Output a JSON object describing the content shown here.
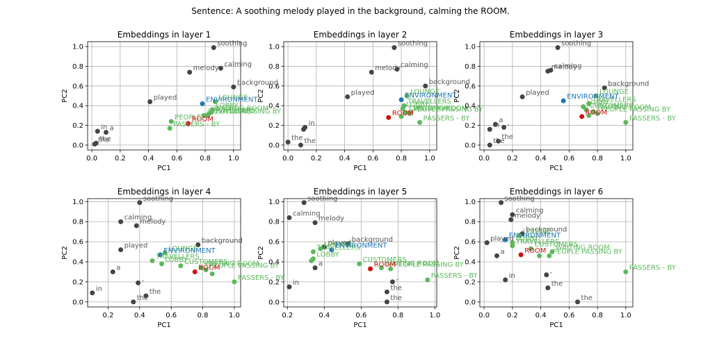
{
  "figure": {
    "suptitle": "Sentence: A soothing melody played in the background, calming the ROOM.",
    "colors": {
      "word": "#444444",
      "room": "#cc1111",
      "environment": "#1f77b4",
      "synonym": "#5cb85c"
    }
  },
  "chart_data": [
    {
      "type": "scatter",
      "title": "Embeddings in layer 1",
      "xlabel": "PC1",
      "ylabel": "PC2",
      "grid": true,
      "xlim": [
        -0.03,
        1.05
      ],
      "ylim": [
        -0.05,
        1.05
      ],
      "xticks": [
        "0.0",
        "0.2",
        "0.4",
        "0.6",
        "0.8",
        "1.0"
      ],
      "xtick_values": [
        0,
        0.2,
        0.4,
        0.6,
        0.8,
        1.0
      ],
      "yticks": [
        "0.0",
        "0.2",
        "0.4",
        "0.6",
        "0.8",
        "1.0"
      ],
      "ytick_values": [
        0,
        0.2,
        0.4,
        0.6,
        0.8,
        1.0
      ],
      "points": [
        {
          "label": "soothing",
          "x": 0.86,
          "y": 0.99,
          "group": "word"
        },
        {
          "label": "calming",
          "x": 0.91,
          "y": 0.78,
          "group": "word"
        },
        {
          "label": "melody",
          "x": 0.69,
          "y": 0.74,
          "group": "word"
        },
        {
          "label": "background",
          "x": 1.0,
          "y": 0.59,
          "group": "word"
        },
        {
          "label": "played",
          "x": 0.41,
          "y": 0.44,
          "group": "word"
        },
        {
          "label": "in",
          "x": 0.04,
          "y": 0.14,
          "group": "word"
        },
        {
          "label": "a",
          "x": 0.1,
          "y": 0.13,
          "group": "word"
        },
        {
          "label": "the",
          "x": 0.02,
          "y": 0.01,
          "group": "word"
        },
        {
          "label": "the",
          "x": 0.03,
          "y": 0.02,
          "group": "word"
        },
        {
          "label": "ENVIRONMENT",
          "x": 0.78,
          "y": 0.42,
          "group": "environment"
        },
        {
          "label": "ROOM",
          "x": 0.68,
          "y": 0.22,
          "group": "room"
        },
        {
          "label": "LOUNGE",
          "x": 0.87,
          "y": 0.44,
          "group": "synonym"
        },
        {
          "label": "LOBBY",
          "x": 0.85,
          "y": 0.36,
          "group": "synonym"
        },
        {
          "label": "PEOPLE",
          "x": 0.56,
          "y": 0.24,
          "group": "synonym"
        },
        {
          "label": "PASSERS - BY",
          "x": 0.55,
          "y": 0.17,
          "group": "synonym"
        },
        {
          "label": "TRAVELLERS",
          "x": 0.82,
          "y": 0.31,
          "group": "synonym"
        },
        {
          "label": "CUSTOMERS",
          "x": 0.79,
          "y": 0.3,
          "group": "synonym"
        },
        {
          "label": "WAITING ROOM",
          "x": 0.84,
          "y": 0.33,
          "group": "synonym"
        },
        {
          "label": "PEOPLE PASSING BY",
          "x": 0.82,
          "y": 0.3,
          "group": "synonym"
        }
      ]
    },
    {
      "type": "scatter",
      "title": "Embeddings in layer 2",
      "xlabel": "PC1",
      "ylabel": "PC2",
      "grid": true,
      "xlim": [
        -0.03,
        1.05
      ],
      "ylim": [
        -0.05,
        1.05
      ],
      "xticks": [
        "0.0",
        "0.2",
        "0.4",
        "0.6",
        "0.8",
        "1.0"
      ],
      "xtick_values": [
        0,
        0.2,
        0.4,
        0.6,
        0.8,
        1.0
      ],
      "yticks": [
        "0.0",
        "0.2",
        "0.4",
        "0.6",
        "0.8",
        "1.0"
      ],
      "ytick_values": [
        0,
        0.2,
        0.4,
        0.6,
        0.8,
        1.0
      ],
      "points": [
        {
          "label": "soothing",
          "x": 0.75,
          "y": 0.99,
          "group": "word"
        },
        {
          "label": "calming",
          "x": 0.77,
          "y": 0.77,
          "group": "word"
        },
        {
          "label": "melody",
          "x": 0.59,
          "y": 0.74,
          "group": "word"
        },
        {
          "label": "background",
          "x": 0.97,
          "y": 0.6,
          "group": "word"
        },
        {
          "label": "played",
          "x": 0.42,
          "y": 0.49,
          "group": "word"
        },
        {
          "label": "in",
          "x": 0.12,
          "y": 0.18,
          "group": "word"
        },
        {
          "label": "",
          "x": 0.11,
          "y": 0.16,
          "group": "word"
        },
        {
          "label": "the",
          "x": 0.0,
          "y": 0.03,
          "group": "word"
        },
        {
          "label": "the",
          "x": 0.09,
          "y": 0.0,
          "group": "word"
        },
        {
          "label": "ENVIRONMENT",
          "x": 0.8,
          "y": 0.46,
          "group": "environment"
        },
        {
          "label": "ROOM",
          "x": 0.71,
          "y": 0.28,
          "group": "room"
        },
        {
          "label": "LOUNGE",
          "x": 0.84,
          "y": 0.5,
          "group": "synonym"
        },
        {
          "label": "TRAVELLERS",
          "x": 0.82,
          "y": 0.4,
          "group": "synonym"
        },
        {
          "label": "LOBBY",
          "x": 0.81,
          "y": 0.37,
          "group": "synonym"
        },
        {
          "label": "CUSTOMERS",
          "x": 0.83,
          "y": 0.33,
          "group": "synonym"
        },
        {
          "label": "WAITING ROOM",
          "x": 0.86,
          "y": 0.33,
          "group": "synonym"
        },
        {
          "label": "PEOPLE PASSING BY",
          "x": 0.86,
          "y": 0.32,
          "group": "synonym"
        },
        {
          "label": "PASSERS - BY",
          "x": 0.93,
          "y": 0.23,
          "group": "synonym"
        },
        {
          "label": "",
          "x": 0.8,
          "y": 0.29,
          "group": "synonym"
        }
      ]
    },
    {
      "type": "scatter",
      "title": "Embeddings in layer 3",
      "xlabel": "PC1",
      "ylabel": "PC2",
      "grid": true,
      "xlim": [
        -0.03,
        1.05
      ],
      "ylim": [
        -0.05,
        1.05
      ],
      "xticks": [
        "0.0",
        "0.2",
        "0.4",
        "0.6",
        "0.8",
        "1.0"
      ],
      "xtick_values": [
        0,
        0.2,
        0.4,
        0.6,
        0.8,
        1.0
      ],
      "yticks": [
        "0.0",
        "0.2",
        "0.4",
        "0.6",
        "0.8",
        "1.0"
      ],
      "ytick_values": [
        0,
        0.2,
        0.4,
        0.6,
        0.8,
        1.0
      ],
      "points": [
        {
          "label": "soothing",
          "x": 0.52,
          "y": 0.99,
          "group": "word"
        },
        {
          "label": "melody",
          "x": 0.45,
          "y": 0.75,
          "group": "word"
        },
        {
          "label": "calming",
          "x": 0.47,
          "y": 0.76,
          "group": "word"
        },
        {
          "label": "background",
          "x": 0.85,
          "y": 0.58,
          "group": "word"
        },
        {
          "label": "played",
          "x": 0.27,
          "y": 0.49,
          "group": "word"
        },
        {
          "label": "a",
          "x": 0.08,
          "y": 0.21,
          "group": "word"
        },
        {
          "label": "in",
          "x": 0.04,
          "y": 0.16,
          "group": "word"
        },
        {
          "label": ",",
          "x": 0.14,
          "y": 0.18,
          "group": "word"
        },
        {
          "label": "the",
          "x": 0.1,
          "y": 0.04,
          "group": "word"
        },
        {
          "label": "the",
          "x": 0.04,
          "y": 0.0,
          "group": "word"
        },
        {
          "label": "ENVIRONMENT",
          "x": 0.56,
          "y": 0.45,
          "group": "environment"
        },
        {
          "label": "ROOM",
          "x": 0.69,
          "y": 0.29,
          "group": "room"
        },
        {
          "label": "LOUNGE",
          "x": 0.79,
          "y": 0.5,
          "group": "synonym"
        },
        {
          "label": "TRAVELLERS",
          "x": 0.74,
          "y": 0.42,
          "group": "synonym"
        },
        {
          "label": "LOBBY",
          "x": 0.7,
          "y": 0.39,
          "group": "synonym"
        },
        {
          "label": "CUSTOMERS",
          "x": 0.72,
          "y": 0.36,
          "group": "synonym"
        },
        {
          "label": "WAITING ROOM",
          "x": 0.77,
          "y": 0.34,
          "group": "synonym"
        },
        {
          "label": "PEOPLE PASSING BY",
          "x": 0.8,
          "y": 0.32,
          "group": "synonym"
        },
        {
          "label": "PASSERS - BY",
          "x": 1.0,
          "y": 0.23,
          "group": "synonym"
        },
        {
          "label": "",
          "x": 0.74,
          "y": 0.3,
          "group": "synonym"
        }
      ]
    },
    {
      "type": "scatter",
      "title": "Embeddings in layer 4",
      "xlabel": "PC1",
      "ylabel": "PC2",
      "grid": true,
      "xlim": [
        0.07,
        1.04
      ],
      "ylim": [
        -0.05,
        1.03
      ],
      "xticks": [
        "0.2",
        "0.4",
        "0.6",
        "0.8",
        "1.0"
      ],
      "xtick_values": [
        0.2,
        0.4,
        0.6,
        0.8,
        1.0
      ],
      "yticks": [
        "0.0",
        "0.2",
        "0.4",
        "0.6",
        "0.8",
        "1.0"
      ],
      "ytick_values": [
        0,
        0.2,
        0.4,
        0.6,
        0.8,
        1.0
      ],
      "points": [
        {
          "label": "soothing",
          "x": 0.4,
          "y": 0.99,
          "group": "word"
        },
        {
          "label": "calming",
          "x": 0.28,
          "y": 0.8,
          "group": "word"
        },
        {
          "label": "melody",
          "x": 0.38,
          "y": 0.76,
          "group": "word"
        },
        {
          "label": "background",
          "x": 0.77,
          "y": 0.57,
          "group": "word"
        },
        {
          "label": "played",
          "x": 0.28,
          "y": 0.52,
          "group": "word"
        },
        {
          "label": "a",
          "x": 0.23,
          "y": 0.3,
          "group": "word"
        },
        {
          "label": ",",
          "x": 0.39,
          "y": 0.19,
          "group": "word"
        },
        {
          "label": "in",
          "x": 0.1,
          "y": 0.09,
          "group": "word"
        },
        {
          "label": "the",
          "x": 0.44,
          "y": 0.06,
          "group": "word"
        },
        {
          "label": "the",
          "x": 0.36,
          "y": 0.0,
          "group": "word"
        },
        {
          "label": "ENVIRONMENT",
          "x": 0.53,
          "y": 0.47,
          "group": "environment"
        },
        {
          "label": "ROOM",
          "x": 0.75,
          "y": 0.3,
          "group": "room"
        },
        {
          "label": "LOUNGE",
          "x": 0.56,
          "y": 0.49,
          "group": "synonym"
        },
        {
          "label": "TRAVELLERS",
          "x": 0.48,
          "y": 0.41,
          "group": "synonym"
        },
        {
          "label": "LOBBY",
          "x": 0.54,
          "y": 0.38,
          "group": "synonym"
        },
        {
          "label": "CUSTOMERS",
          "x": 0.66,
          "y": 0.36,
          "group": "synonym"
        },
        {
          "label": "WAITING ROOM",
          "x": 0.79,
          "y": 0.34,
          "group": "synonym"
        },
        {
          "label": "PEOPLE PASSING BY",
          "x": 0.82,
          "y": 0.32,
          "group": "synonym"
        },
        {
          "label": "PASSERS - BY",
          "x": 1.0,
          "y": 0.2,
          "group": "synonym"
        },
        {
          "label": "",
          "x": 0.86,
          "y": 0.28,
          "group": "synonym"
        }
      ]
    },
    {
      "type": "scatter",
      "title": "Embeddings in layer 5",
      "xlabel": "PC1",
      "ylabel": "PC2",
      "grid": true,
      "xlim": [
        0.18,
        1.01
      ],
      "ylim": [
        -0.05,
        1.03
      ],
      "xticks": [
        "0.2",
        "0.4",
        "0.6",
        "0.8",
        "1.0"
      ],
      "xtick_values": [
        0.2,
        0.4,
        0.6,
        0.8,
        1.0
      ],
      "yticks": [
        "0.0",
        "0.2",
        "0.4",
        "0.6",
        "0.8",
        "1.0"
      ],
      "ytick_values": [
        0,
        0.2,
        0.4,
        0.6,
        0.8,
        1.0
      ],
      "points": [
        {
          "label": "soothing",
          "x": 0.29,
          "y": 0.99,
          "group": "word"
        },
        {
          "label": "calming",
          "x": 0.21,
          "y": 0.84,
          "group": "word"
        },
        {
          "label": "melody",
          "x": 0.35,
          "y": 0.79,
          "group": "word"
        },
        {
          "label": "background",
          "x": 0.53,
          "y": 0.58,
          "group": "word"
        },
        {
          "label": "played",
          "x": 0.4,
          "y": 0.55,
          "group": "word"
        },
        {
          "label": "a",
          "x": 0.35,
          "y": 0.34,
          "group": "word"
        },
        {
          "label": "in",
          "x": 0.21,
          "y": 0.15,
          "group": "word"
        },
        {
          "label": ",",
          "x": 0.77,
          "y": 0.2,
          "group": "word"
        },
        {
          "label": "the",
          "x": 0.74,
          "y": 0.1,
          "group": "word"
        },
        {
          "label": "the",
          "x": 0.74,
          "y": 0.0,
          "group": "word"
        },
        {
          "label": "ENVIRONMENT",
          "x": 0.44,
          "y": 0.52,
          "group": "environment"
        },
        {
          "label": "ROOM",
          "x": 0.65,
          "y": 0.33,
          "group": "room"
        },
        {
          "label": "LOUNGE",
          "x": 0.38,
          "y": 0.53,
          "group": "synonym"
        },
        {
          "label": "TRAVELLERS",
          "x": 0.34,
          "y": 0.5,
          "group": "synonym"
        },
        {
          "label": "LOBBY",
          "x": 0.34,
          "y": 0.43,
          "group": "synonym"
        },
        {
          "label": "",
          "x": 0.33,
          "y": 0.41,
          "group": "synonym"
        },
        {
          "label": "CUSTOMERS",
          "x": 0.59,
          "y": 0.38,
          "group": "synonym"
        },
        {
          "label": "WAITING ROOM",
          "x": 0.71,
          "y": 0.34,
          "group": "synonym"
        },
        {
          "label": "PEOPLE PASSING BY",
          "x": 0.76,
          "y": 0.33,
          "group": "synonym"
        },
        {
          "label": "PASSERS - BY",
          "x": 0.96,
          "y": 0.22,
          "group": "synonym"
        }
      ]
    },
    {
      "type": "scatter",
      "title": "Embeddings in layer 6",
      "xlabel": "PC1",
      "ylabel": "PC2",
      "grid": true,
      "xlim": [
        -0.03,
        1.05
      ],
      "ylim": [
        -0.05,
        1.03
      ],
      "xticks": [
        "0.0",
        "0.2",
        "0.4",
        "0.6",
        "0.8",
        "1.0"
      ],
      "xtick_values": [
        0,
        0.2,
        0.4,
        0.6,
        0.8,
        1.0
      ],
      "yticks": [
        "0.0",
        "0.2",
        "0.4",
        "0.6",
        "0.8",
        "1.0"
      ],
      "ytick_values": [
        0,
        0.2,
        0.4,
        0.6,
        0.8,
        1.0
      ],
      "points": [
        {
          "label": "soothing",
          "x": 0.12,
          "y": 0.99,
          "group": "word"
        },
        {
          "label": "calming",
          "x": 0.2,
          "y": 0.87,
          "group": "word"
        },
        {
          "label": "melody",
          "x": 0.19,
          "y": 0.82,
          "group": "word"
        },
        {
          "label": "background",
          "x": 0.27,
          "y": 0.68,
          "group": "word"
        },
        {
          "label": "played",
          "x": 0.02,
          "y": 0.59,
          "group": "word"
        },
        {
          "label": "a",
          "x": 0.09,
          "y": 0.46,
          "group": "word"
        },
        {
          "label": "in",
          "x": 0.15,
          "y": 0.22,
          "group": "word"
        },
        {
          "label": ",",
          "x": 0.44,
          "y": 0.27,
          "group": "word"
        },
        {
          "label": "the",
          "x": 0.45,
          "y": 0.14,
          "group": "word"
        },
        {
          "label": "the",
          "x": 0.66,
          "y": 0.0,
          "group": "word"
        },
        {
          "label": "ENVIRONMENT",
          "x": 0.15,
          "y": 0.62,
          "group": "environment"
        },
        {
          "label": "ROOM",
          "x": 0.26,
          "y": 0.47,
          "group": "room"
        },
        {
          "label": "LOUNGE",
          "x": 0.25,
          "y": 0.66,
          "group": "synonym"
        },
        {
          "label": "LOBBY",
          "x": 0.2,
          "y": 0.59,
          "group": "synonym"
        },
        {
          "label": "TRAVELLERS",
          "x": 0.2,
          "y": 0.56,
          "group": "synonym"
        },
        {
          "label": "CUSTOMERS",
          "x": 0.33,
          "y": 0.53,
          "group": "synonym"
        },
        {
          "label": "WAITING ROOM",
          "x": 0.48,
          "y": 0.5,
          "group": "synonym"
        },
        {
          "label": "PEOPLE PASSING BY",
          "x": 0.46,
          "y": 0.46,
          "group": "synonym"
        },
        {
          "label": "",
          "x": 0.39,
          "y": 0.46,
          "group": "synonym"
        },
        {
          "label": "PASSERS - BY",
          "x": 1.0,
          "y": 0.3,
          "group": "synonym"
        }
      ]
    }
  ]
}
